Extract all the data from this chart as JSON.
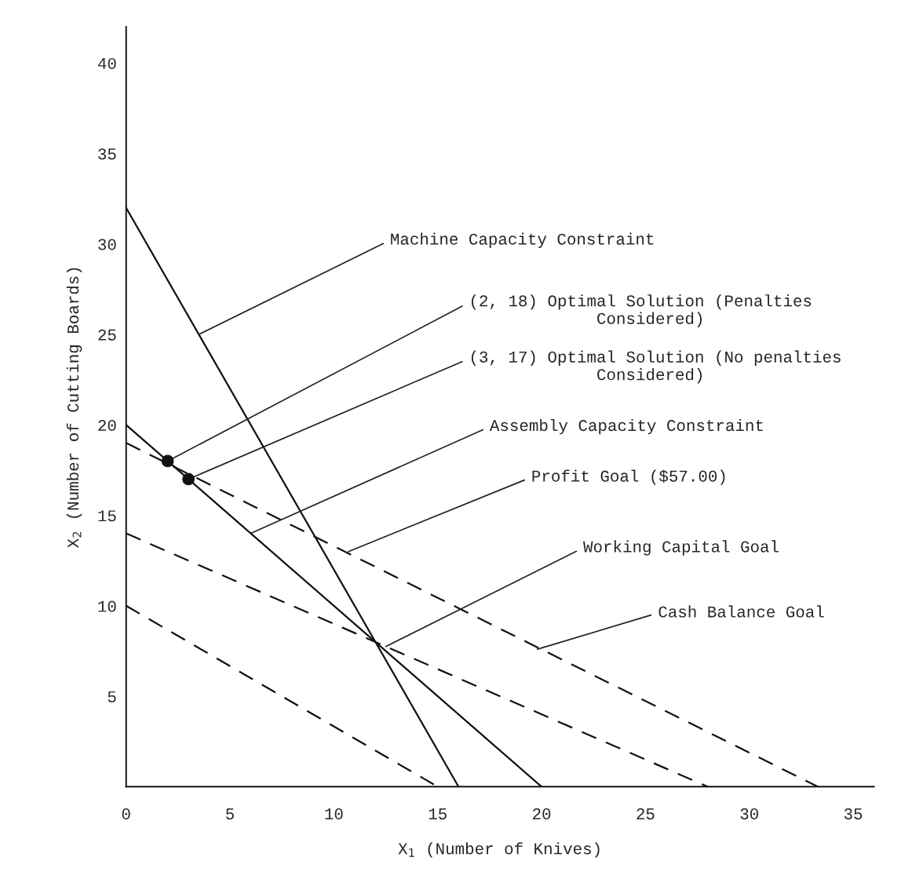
{
  "chart_data": {
    "type": "line",
    "xlabel": "X$_{1}$ (Number of Knives)",
    "ylabel": "X$_{2}$ (Number of Cutting Boards)",
    "xlim": [
      0,
      36
    ],
    "ylim": [
      0,
      42
    ],
    "xticks": [
      0,
      5,
      10,
      15,
      20,
      25,
      30,
      35
    ],
    "yticks": [
      5,
      10,
      15,
      20,
      25,
      30,
      35,
      40
    ],
    "grid": false,
    "marker": "none",
    "series": [
      {
        "type": "line",
        "x": [
          0,
          16
        ],
        "values": [
          32,
          0
        ],
        "color": "#111111",
        "line_style": "solid"
      },
      {
        "type": "line",
        "x": [
          0,
          20
        ],
        "values": [
          20,
          0
        ],
        "color": "#111111",
        "line_style": "solid"
      },
      {
        "type": "line",
        "x": [
          0,
          33.3
        ],
        "values": [
          19,
          0
        ],
        "color": "#111111",
        "line_style": "dashed"
      },
      {
        "type": "line",
        "x": [
          0,
          28
        ],
        "values": [
          14,
          0
        ],
        "color": "#111111",
        "line_style": "dashed"
      },
      {
        "type": "line",
        "x": [
          0,
          15
        ],
        "values": [
          10,
          0
        ],
        "color": "#111111",
        "line_style": "dashed"
      },
      {
        "type": "scatter",
        "x": [
          2,
          3
        ],
        "values": [
          18,
          17
        ],
        "color": "#111111",
        "marker": "circle"
      }
    ],
    "annotations": [
      {
        "text": "Machine Capacity Constraint",
        "x": 3.5,
        "y": 25
      },
      {
        "text": "(2, 18) Optimal Solution (Penalties\n             Considered)",
        "x": 2,
        "y": 18
      },
      {
        "text": "(3, 17) Optimal Solution (No penalties\n             Considered)",
        "x": 3,
        "y": 17
      },
      {
        "text": "Assembly Capacity Constraint",
        "x": 6,
        "y": 14
      },
      {
        "text": "Profit Goal ($57.00)",
        "x": 10.7,
        "y": 13
      },
      {
        "text": "Working Capital Goal",
        "x": 12.5,
        "y": 7.75
      },
      {
        "text": "Cash Balance Goal",
        "x": 19.8,
        "y": 7.6
      }
    ]
  }
}
